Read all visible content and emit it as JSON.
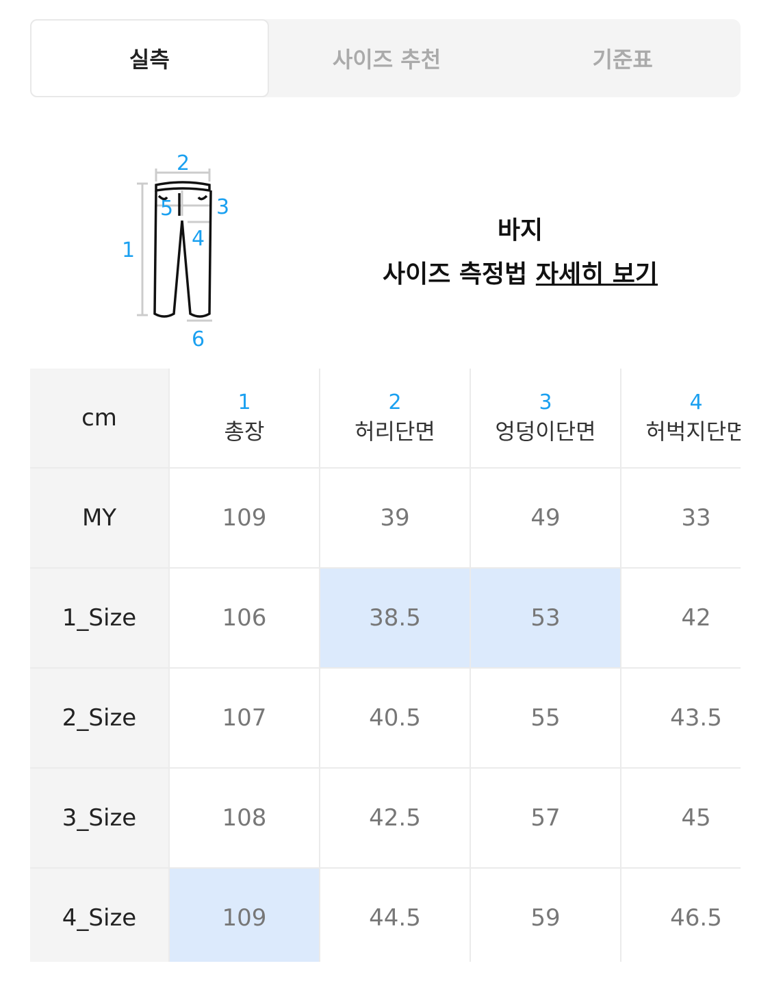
{
  "tabs": [
    {
      "label": "실측",
      "active": true
    },
    {
      "label": "사이즈 추천",
      "active": false
    },
    {
      "label": "기준표",
      "active": false
    }
  ],
  "figure": {
    "labels": [
      "1",
      "2",
      "3",
      "4",
      "5",
      "6"
    ],
    "label_color": "#1aa0f0",
    "icon": "pants-icon"
  },
  "info": {
    "title": "바지",
    "prefix": "사이즈 측정법 ",
    "link": "자세히 보기"
  },
  "table": {
    "unit": "cm",
    "columns": [
      {
        "num": "1",
        "name": "총장"
      },
      {
        "num": "2",
        "name": "허리단면"
      },
      {
        "num": "3",
        "name": "엉덩이단면"
      },
      {
        "num": "4",
        "name": "허벅지단면"
      }
    ],
    "rows": [
      {
        "label": "MY",
        "values": [
          "109",
          "39",
          "49",
          "33"
        ],
        "highlight": []
      },
      {
        "label": "1_Size",
        "values": [
          "106",
          "38.5",
          "53",
          "42"
        ],
        "highlight": [
          1,
          2
        ]
      },
      {
        "label": "2_Size",
        "values": [
          "107",
          "40.5",
          "55",
          "43.5"
        ],
        "highlight": []
      },
      {
        "label": "3_Size",
        "values": [
          "108",
          "42.5",
          "57",
          "45"
        ],
        "highlight": []
      },
      {
        "label": "4_Size",
        "values": [
          "109",
          "44.5",
          "59",
          "46.5"
        ],
        "highlight": [
          0
        ]
      }
    ],
    "highlight_color": "#dceafc"
  }
}
